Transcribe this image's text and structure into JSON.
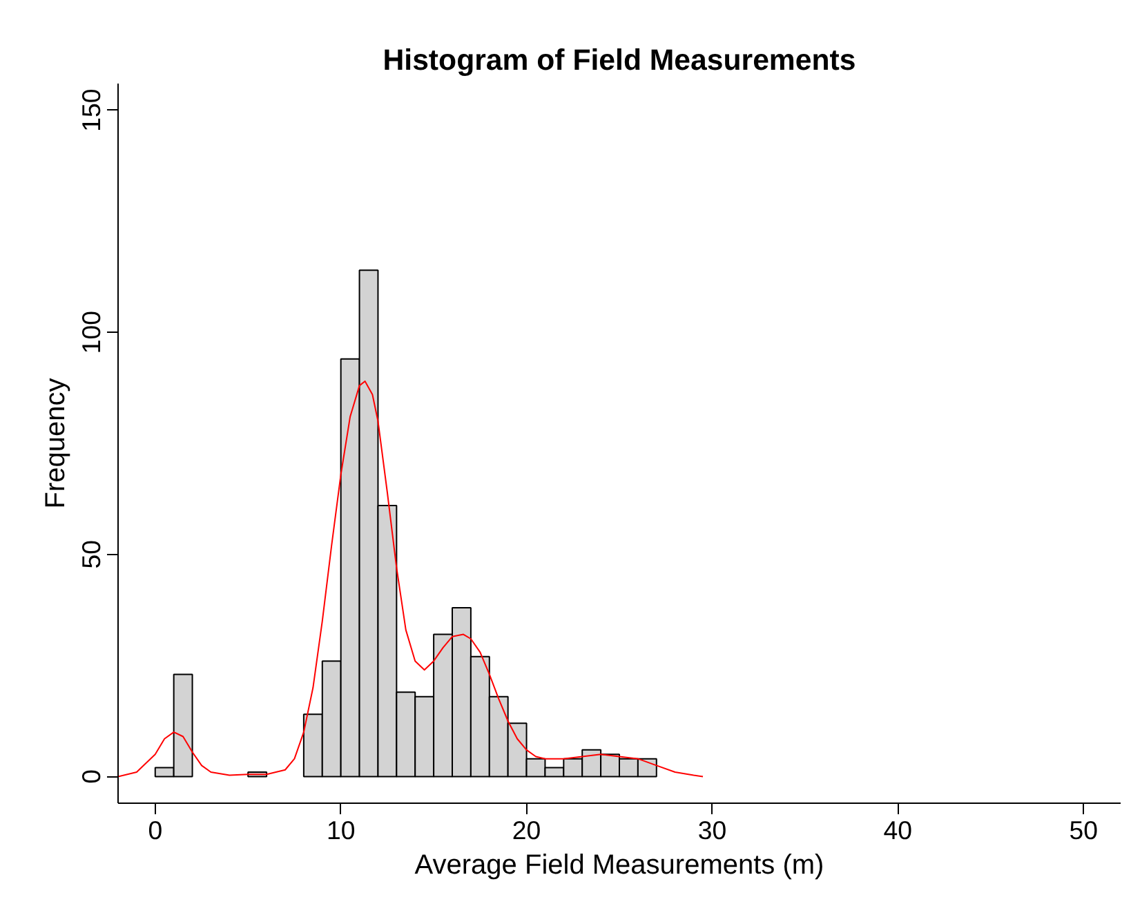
{
  "chart_data": {
    "type": "histogram",
    "title": "Histogram of Field Measurements",
    "xlabel": "Average Field Measurements (m)",
    "ylabel": "Frequency",
    "bins": [
      0,
      1,
      2,
      3,
      4,
      5,
      6,
      7,
      8,
      9,
      10,
      11,
      12,
      13,
      14,
      15,
      16,
      17,
      18,
      19,
      20,
      21,
      22,
      23,
      24,
      25,
      26,
      27
    ],
    "values": [
      2,
      23,
      0,
      0,
      0,
      1,
      0,
      0,
      14,
      26,
      94,
      114,
      61,
      19,
      18,
      32,
      38,
      27,
      18,
      12,
      4,
      2,
      4,
      6,
      5,
      4,
      4
    ],
    "color": "#d3d3d3",
    "series": [
      {
        "type": "line",
        "color": "#ff0000",
        "x": [
          -2,
          -1,
          0,
          0.5,
          1,
          1.5,
          2,
          2.5,
          3,
          4,
          5,
          6,
          7,
          7.5,
          8,
          8.5,
          9,
          9.5,
          10,
          10.5,
          11,
          11.3,
          11.7,
          12,
          12.5,
          13,
          13.5,
          14,
          14.5,
          15,
          15.5,
          16,
          16.6,
          17,
          17.5,
          18,
          18.5,
          19,
          19.5,
          20,
          20.5,
          21,
          22,
          23,
          24,
          25,
          26,
          27,
          28,
          29,
          29.5
        ],
        "values": [
          0,
          1,
          5,
          8.5,
          10,
          9,
          5.5,
          2.5,
          1,
          0.3,
          0.5,
          0.5,
          1.5,
          4,
          10,
          20,
          35,
          52,
          68,
          81,
          88,
          89,
          86,
          80,
          64,
          47,
          33,
          26,
          24,
          26,
          29,
          31.5,
          32,
          31,
          28,
          23,
          17.5,
          12.5,
          8.5,
          6,
          4.5,
          4,
          4,
          4.5,
          5,
          4.5,
          4,
          2.5,
          1,
          0.3,
          0
        ]
      }
    ],
    "xlim": [
      -2,
      52
    ],
    "ylim": [
      -6,
      156
    ],
    "xticks": [
      0,
      10,
      20,
      30,
      40,
      50
    ],
    "yticks": [
      0,
      50,
      100,
      150
    ],
    "grid": false
  }
}
